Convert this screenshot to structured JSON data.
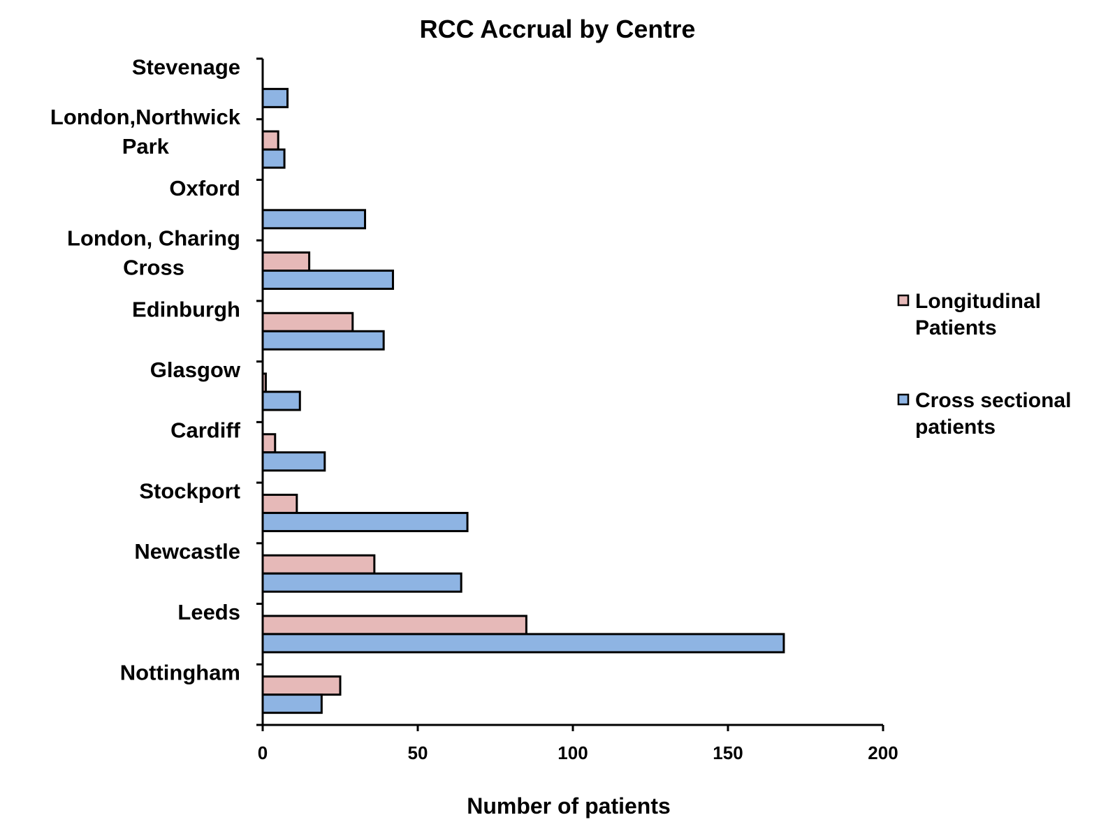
{
  "chart_data": {
    "type": "bar",
    "orientation": "horizontal",
    "title": "RCC Accrual by Centre",
    "xlabel": "Number of patients",
    "ylabel": "",
    "xlim": [
      0,
      200
    ],
    "xticks": [
      "0",
      "50",
      "100",
      "150",
      "200"
    ],
    "grid": false,
    "legend_position": "right",
    "categories": [
      [
        "Stevenage"
      ],
      [
        "London,Northwick",
        "Park"
      ],
      [
        "Oxford"
      ],
      [
        "London, Charing",
        "Cross"
      ],
      [
        "Edinburgh"
      ],
      [
        "Glasgow"
      ],
      [
        "Cardiff"
      ],
      [
        "Stockport"
      ],
      [
        "Newcastle"
      ],
      [
        "Leeds"
      ],
      [
        "Nottingham"
      ]
    ],
    "series": [
      {
        "name": [
          "Longitudinal",
          "Patients"
        ],
        "color": "#e6b9b8",
        "values": [
          0,
          5,
          0,
          15,
          29,
          1,
          4,
          11,
          36,
          85,
          25
        ]
      },
      {
        "name": [
          "Cross sectional",
          "patients"
        ],
        "color": "#8eb4e3",
        "values": [
          8,
          7,
          33,
          42,
          39,
          12,
          20,
          66,
          64,
          168,
          19
        ]
      }
    ]
  }
}
